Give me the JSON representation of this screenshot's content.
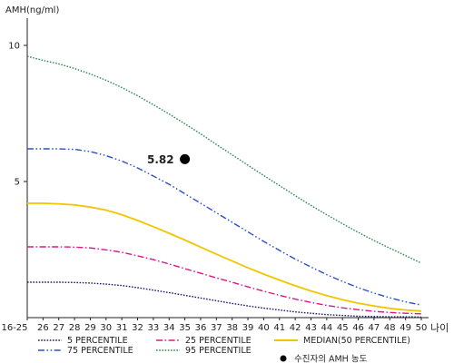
{
  "chart_data": {
    "type": "line",
    "title": "",
    "ylabel": "AMH(ng/ml)",
    "xlabel": "나이",
    "x": [
      "16-25",
      "26",
      "27",
      "28",
      "29",
      "30",
      "31",
      "32",
      "33",
      "34",
      "35",
      "36",
      "37",
      "38",
      "39",
      "40",
      "41",
      "42",
      "43",
      "44",
      "45",
      "46",
      "47",
      "48",
      "49",
      "50"
    ],
    "ylim": [
      0,
      11
    ],
    "yticks": [
      5,
      10
    ],
    "grid": false,
    "legend_position": "bottom",
    "series": [
      {
        "name": "5 PERCENTILE",
        "color": "#1a1a6e",
        "dash": "dotted",
        "values": [
          1.3,
          1.3,
          1.3,
          1.29,
          1.27,
          1.23,
          1.18,
          1.1,
          1.01,
          0.92,
          0.82,
          0.72,
          0.62,
          0.52,
          0.43,
          0.35,
          0.28,
          0.21,
          0.16,
          0.11,
          0.08,
          0.05,
          0.04,
          0.03,
          0.03,
          0.02
        ]
      },
      {
        "name": "25 PERCENTILE",
        "color": "#e0158a",
        "dash": "dashdot",
        "values": [
          2.6,
          2.6,
          2.6,
          2.59,
          2.56,
          2.49,
          2.4,
          2.27,
          2.13,
          1.97,
          1.8,
          1.63,
          1.46,
          1.3,
          1.13,
          0.97,
          0.82,
          0.68,
          0.56,
          0.45,
          0.36,
          0.29,
          0.23,
          0.19,
          0.16,
          0.14
        ]
      },
      {
        "name": "MEDIAN(50 PERCENTILE)",
        "color": "#f2c500",
        "dash": "solid",
        "values": [
          4.2,
          4.2,
          4.18,
          4.14,
          4.06,
          3.95,
          3.78,
          3.57,
          3.34,
          3.1,
          2.85,
          2.59,
          2.33,
          2.08,
          1.83,
          1.6,
          1.38,
          1.17,
          0.98,
          0.81,
          0.66,
          0.53,
          0.43,
          0.34,
          0.28,
          0.24
        ]
      },
      {
        "name": "75 PERCENTILE",
        "color": "#2b50c8",
        "dash": "dashdotdot",
        "values": [
          6.2,
          6.2,
          6.2,
          6.18,
          6.1,
          5.95,
          5.75,
          5.5,
          5.2,
          4.9,
          4.55,
          4.2,
          3.85,
          3.5,
          3.15,
          2.8,
          2.47,
          2.15,
          1.86,
          1.58,
          1.33,
          1.1,
          0.9,
          0.73,
          0.58,
          0.46
        ]
      },
      {
        "name": "95 PERCENTILE",
        "color": "#2e8b57",
        "dash": "dotted",
        "values": [
          9.6,
          9.45,
          9.32,
          9.15,
          8.95,
          8.72,
          8.45,
          8.15,
          7.82,
          7.48,
          7.12,
          6.75,
          6.36,
          5.98,
          5.6,
          5.22,
          4.85,
          4.48,
          4.12,
          3.78,
          3.45,
          3.13,
          2.83,
          2.55,
          2.28,
          2.0
        ]
      }
    ],
    "point": {
      "name": "수진자의 AMH 농도",
      "label": "5.82",
      "x": "35",
      "y": 5.82,
      "color": "#000000"
    }
  }
}
